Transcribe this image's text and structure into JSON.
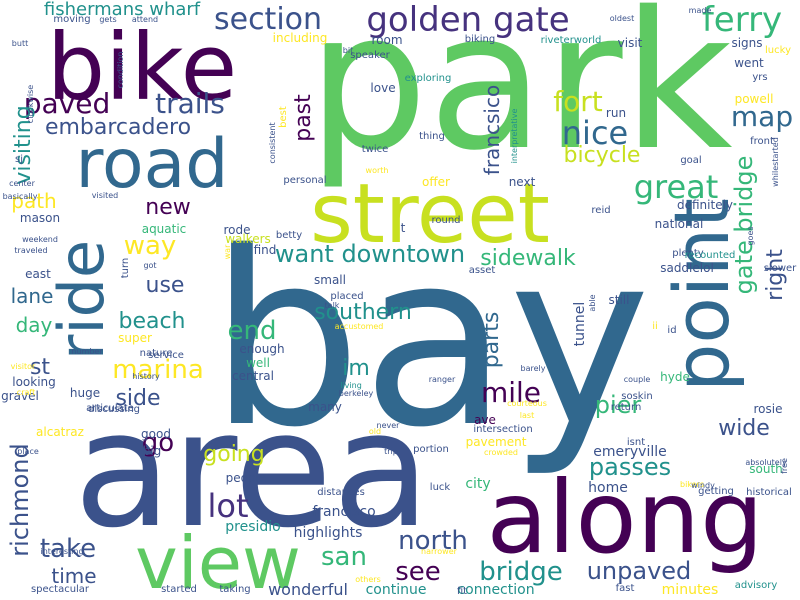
{
  "words": [
    {
      "text": "park",
      "color": "#5ec962",
      "rotate": false
    },
    {
      "text": "bay",
      "color": "#31688e",
      "rotate": false
    },
    {
      "text": "area",
      "color": "#3b528b",
      "rotate": false
    },
    {
      "text": "along",
      "color": "#440154",
      "rotate": false
    },
    {
      "text": "street",
      "color": "#c8e020",
      "rotate": false
    },
    {
      "text": "view",
      "color": "#5ec962",
      "rotate": false
    },
    {
      "text": "bike",
      "color": "#440154",
      "rotate": false
    },
    {
      "text": "road",
      "color": "#31688e",
      "rotate": false
    },
    {
      "text": "point",
      "color": "#31688e",
      "rotate": true
    },
    {
      "text": "ride",
      "color": "#31688e",
      "rotate": true
    },
    {
      "text": "golden gate",
      "color": "#46327e",
      "rotate": false
    },
    {
      "text": "section",
      "color": "#3b528b",
      "rotate": false
    },
    {
      "text": "ferry",
      "color": "#35b779",
      "rotate": false
    },
    {
      "text": "paved",
      "color": "#440154",
      "rotate": false
    },
    {
      "text": "trails",
      "color": "#3b528b",
      "rotate": false
    },
    {
      "text": "nice",
      "color": "#31688e",
      "rotate": false
    },
    {
      "text": "fort",
      "color": "#c8e020",
      "rotate": false
    },
    {
      "text": "map",
      "color": "#31688e",
      "rotate": false
    },
    {
      "text": "great",
      "color": "#35b779",
      "rotate": false
    },
    {
      "text": "bicycle",
      "color": "#c8e020",
      "rotate": false
    },
    {
      "text": "embarcadero",
      "color": "#3b528b",
      "rotate": false
    },
    {
      "text": "visiting",
      "color": "#21918c",
      "rotate": true
    },
    {
      "text": "fishermans wharf",
      "color": "#21918c",
      "rotate": false
    },
    {
      "text": "francsico",
      "color": "#3b528b",
      "rotate": true
    },
    {
      "text": "past",
      "color": "#440154",
      "rotate": true
    },
    {
      "text": "new",
      "color": "#440154",
      "rotate": false
    },
    {
      "text": "way",
      "color": "#fde725",
      "rotate": false
    },
    {
      "text": "want downtown",
      "color": "#21918c",
      "rotate": false
    },
    {
      "text": "sidewalk",
      "color": "#35b779",
      "rotate": false
    },
    {
      "text": "gate bridge",
      "color": "#35b779",
      "rotate": true
    },
    {
      "text": "right",
      "color": "#3b528b",
      "rotate": true
    },
    {
      "text": "path",
      "color": "#fde725",
      "rotate": false
    },
    {
      "text": "lane",
      "color": "#31688e",
      "rotate": false
    },
    {
      "text": "use",
      "color": "#3b528b",
      "rotate": false
    },
    {
      "text": "beach",
      "color": "#21918c",
      "rotate": false
    },
    {
      "text": "day",
      "color": "#35b779",
      "rotate": false
    },
    {
      "text": "end",
      "color": "#35b779",
      "rotate": false
    },
    {
      "text": "southern",
      "color": "#21918c",
      "rotate": false
    },
    {
      "text": "parts",
      "color": "#31688e",
      "rotate": true
    },
    {
      "text": "marina",
      "color": "#fde725",
      "rotate": false
    },
    {
      "text": "st",
      "color": "#3b528b",
      "rotate": false
    },
    {
      "text": "im",
      "color": "#21918c",
      "rotate": false
    },
    {
      "text": "mile",
      "color": "#440154",
      "rotate": false
    },
    {
      "text": "pier",
      "color": "#35b779",
      "rotate": false
    },
    {
      "text": "richmond",
      "color": "#3b528b",
      "rotate": true
    },
    {
      "text": "side",
      "color": "#3b528b",
      "rotate": false
    },
    {
      "text": "go",
      "color": "#440154",
      "rotate": false
    },
    {
      "text": "going",
      "color": "#c8e020",
      "rotate": false
    },
    {
      "text": "lot",
      "color": "#46327e",
      "rotate": false
    },
    {
      "text": "wide",
      "color": "#3b528b",
      "rotate": false
    },
    {
      "text": "passes",
      "color": "#21918c",
      "rotate": false
    },
    {
      "text": "take",
      "color": "#3b528b",
      "rotate": false
    },
    {
      "text": "san",
      "color": "#35b779",
      "rotate": false
    },
    {
      "text": "north",
      "color": "#3b528b",
      "rotate": false
    },
    {
      "text": "see",
      "color": "#440154",
      "rotate": false
    },
    {
      "text": "bridge",
      "color": "#21918c",
      "rotate": false
    },
    {
      "text": "unpaved",
      "color": "#3b528b",
      "rotate": false
    },
    {
      "text": "time",
      "color": "#3b528b",
      "rotate": false
    },
    {
      "text": "presidio",
      "color": "#21918c",
      "rotate": false
    },
    {
      "text": "highlights",
      "color": "#3b528b",
      "rotate": false
    },
    {
      "text": "francisco",
      "color": "#3b528b",
      "rotate": false
    },
    {
      "text": "wonderful",
      "color": "#3b528b",
      "rotate": false
    },
    {
      "text": "continue",
      "color": "#21918c",
      "rotate": false
    },
    {
      "text": "connection",
      "color": "#21918c",
      "rotate": false
    },
    {
      "text": "minutes",
      "color": "#fde725",
      "rotate": false
    },
    {
      "text": "emeryville",
      "color": "#3b528b",
      "rotate": false
    },
    {
      "text": "ave",
      "color": "#440154",
      "rotate": false
    },
    {
      "text": "pavement",
      "color": "#fde725",
      "rotate": false
    },
    {
      "text": "city",
      "color": "#35b779",
      "rotate": false
    },
    {
      "text": "home",
      "color": "#3b528b",
      "rotate": false
    },
    {
      "text": "tunnel",
      "color": "#3b528b",
      "rotate": true
    },
    {
      "text": "still",
      "color": "#3b528b",
      "rotate": false
    },
    {
      "text": "rosie",
      "color": "#3b528b",
      "rotate": false
    },
    {
      "text": "south",
      "color": "#35b779",
      "rotate": false
    },
    {
      "text": "hyde",
      "color": "#35b779",
      "rotate": false
    },
    {
      "text": "id",
      "color": "#3b528b",
      "rotate": false
    },
    {
      "text": "ii",
      "color": "#fde725",
      "rotate": false
    },
    {
      "text": "isnt",
      "color": "#3b528b",
      "rotate": false
    },
    {
      "text": "find",
      "color": "#3b528b",
      "rotate": false
    },
    {
      "text": "walkers",
      "color": "#c8e020",
      "rotate": false
    },
    {
      "text": "small",
      "color": "#3b528b",
      "rotate": false
    },
    {
      "text": "placed",
      "color": "#3b528b",
      "rotate": false
    },
    {
      "text": "talk",
      "color": "#3b528b",
      "rotate": false
    },
    {
      "text": "accustomed",
      "color": "#fde725",
      "rotate": false
    },
    {
      "text": "well",
      "color": "#35b779",
      "rotate": false
    },
    {
      "text": "enough",
      "color": "#3b528b",
      "rotate": false
    },
    {
      "text": "central",
      "color": "#3b528b",
      "rotate": false
    },
    {
      "text": "berkeley",
      "color": "#3b528b",
      "rotate": false
    },
    {
      "text": "many",
      "color": "#3b528b",
      "rotate": false
    },
    {
      "text": "living",
      "color": "#21918c",
      "rotate": false
    },
    {
      "text": "huge",
      "color": "#3b528b",
      "rotate": false
    },
    {
      "text": "super",
      "color": "#fde725",
      "rotate": false
    },
    {
      "text": "gravel",
      "color": "#3b528b",
      "rotate": false
    },
    {
      "text": "looking",
      "color": "#3b528b",
      "rotate": false
    },
    {
      "text": "alcatraz",
      "color": "#fde725",
      "rotate": false
    },
    {
      "text": "good",
      "color": "#3b528b",
      "rotate": false
    },
    {
      "text": "big",
      "color": "#3b528b",
      "rotate": false
    },
    {
      "text": "people",
      "color": "#3b528b",
      "rotate": false
    },
    {
      "text": "place",
      "color": "#3b528b",
      "rotate": false
    },
    {
      "text": "interesting",
      "color": "#3b528b",
      "rotate": false
    },
    {
      "text": "spectacular",
      "color": "#3b528b",
      "rotate": false
    },
    {
      "text": "started",
      "color": "#3b528b",
      "rotate": false
    },
    {
      "text": "taking",
      "color": "#3b528b",
      "rotate": false
    },
    {
      "text": "others",
      "color": "#fde725",
      "rotate": false
    },
    {
      "text": "fit",
      "color": "#3b528b",
      "rotate": false
    },
    {
      "text": "fast",
      "color": "#3b528b",
      "rotate": false
    },
    {
      "text": "advisory",
      "color": "#21918c",
      "rotate": false
    },
    {
      "text": "getting",
      "color": "#3b528b",
      "rotate": false
    },
    {
      "text": "historical",
      "color": "#3b528b",
      "rotate": false
    },
    {
      "text": "absolutely",
      "color": "#3b528b",
      "rotate": false
    },
    {
      "text": "including",
      "color": "#fde725",
      "rotate": false
    },
    {
      "text": "room",
      "color": "#3b528b",
      "rotate": false
    },
    {
      "text": "visit",
      "color": "#3b528b",
      "rotate": false
    },
    {
      "text": "signs",
      "color": "#3b528b",
      "rotate": false
    },
    {
      "text": "powell",
      "color": "#fde725",
      "rotate": false
    },
    {
      "text": "went",
      "color": "#3b528b",
      "rotate": false
    },
    {
      "text": "lucky",
      "color": "#fde725",
      "rotate": false
    },
    {
      "text": "yrs",
      "color": "#3b528b",
      "rotate": false
    },
    {
      "text": "run",
      "color": "#3b528b",
      "rotate": false
    },
    {
      "text": "goal",
      "color": "#3b528b",
      "rotate": false
    },
    {
      "text": "front",
      "color": "#3b528b",
      "rotate": false
    },
    {
      "text": "biking",
      "color": "#3b528b",
      "rotate": false
    },
    {
      "text": "riveterworld",
      "color": "#21918c",
      "rotate": false
    },
    {
      "text": "made",
      "color": "#3b528b",
      "rotate": false
    },
    {
      "text": "oldest",
      "color": "#3b528b",
      "rotate": false
    },
    {
      "text": "speaker",
      "color": "#3b528b",
      "rotate": false
    },
    {
      "text": "exploring",
      "color": "#21918c",
      "rotate": false
    },
    {
      "text": "love",
      "color": "#3b528b",
      "rotate": false
    },
    {
      "text": "thing",
      "color": "#3b528b",
      "rotate": false
    },
    {
      "text": "offer",
      "color": "#fde725",
      "rotate": false
    },
    {
      "text": "next",
      "color": "#3b528b",
      "rotate": false
    },
    {
      "text": "personal",
      "color": "#3b528b",
      "rotate": false
    },
    {
      "text": "worth",
      "color": "#fde725",
      "rotate": false
    },
    {
      "text": "twice",
      "color": "#3b528b",
      "rotate": false
    },
    {
      "text": "aquatic",
      "color": "#35b779",
      "rotate": false
    },
    {
      "text": "rode",
      "color": "#3b528b",
      "rotate": false
    },
    {
      "text": "betty",
      "color": "#3b528b",
      "rotate": false
    },
    {
      "text": "round",
      "color": "#3b528b",
      "rotate": false
    },
    {
      "text": "definitely",
      "color": "#3b528b",
      "rotate": false
    },
    {
      "text": "national",
      "color": "#3b528b",
      "rotate": false
    },
    {
      "text": "reid",
      "color": "#3b528b",
      "rotate": false
    },
    {
      "text": "plenty",
      "color": "#3b528b",
      "rotate": false
    },
    {
      "text": "recounted",
      "color": "#21918c",
      "rotate": false
    },
    {
      "text": "saddlelol",
      "color": "#3b528b",
      "rotate": false
    },
    {
      "text": "slower",
      "color": "#3b528b",
      "rotate": false
    },
    {
      "text": "asset",
      "color": "#3b528b",
      "rotate": false
    },
    {
      "text": "nature",
      "color": "#3b528b",
      "rotate": false
    },
    {
      "text": "got",
      "color": "#3b528b",
      "rotate": false
    },
    {
      "text": "east",
      "color": "#3b528b",
      "rotate": false
    },
    {
      "text": "mason",
      "color": "#3b528b",
      "rotate": false
    },
    {
      "text": "center",
      "color": "#3b528b",
      "rotate": false
    },
    {
      "text": "basically",
      "color": "#3b528b",
      "rotate": false
    },
    {
      "text": "weekend",
      "color": "#3b528b",
      "rotate": false
    },
    {
      "text": "traveled",
      "color": "#3b528b",
      "rotate": false
    },
    {
      "text": "visitor",
      "color": "#fde725",
      "rotate": false
    },
    {
      "text": "number",
      "color": "#3b528b",
      "rotate": false
    },
    {
      "text": "service",
      "color": "#3b528b",
      "rotate": false
    },
    {
      "text": "articulate",
      "color": "#3b528b",
      "rotate": false
    },
    {
      "text": "history",
      "color": "#3b528b",
      "rotate": false
    },
    {
      "text": "craft",
      "color": "#fde725",
      "rotate": false
    },
    {
      "text": "discussing",
      "color": "#3b528b",
      "rotate": false
    },
    {
      "text": "old",
      "color": "#fde725",
      "rotate": false
    },
    {
      "text": "never",
      "color": "#3b528b",
      "rotate": false
    },
    {
      "text": "trip",
      "color": "#3b528b",
      "rotate": false
    },
    {
      "text": "portion",
      "color": "#3b528b",
      "rotate": false
    },
    {
      "text": "intersection",
      "color": "#3b528b",
      "rotate": false
    },
    {
      "text": "crowded",
      "color": "#fde725",
      "rotate": false
    },
    {
      "text": "courteous",
      "color": "#fde725",
      "rotate": false
    },
    {
      "text": "last",
      "color": "#fde725",
      "rotate": false
    },
    {
      "text": "soskin",
      "color": "#3b528b",
      "rotate": false
    },
    {
      "text": "return",
      "color": "#3b528b",
      "rotate": false
    },
    {
      "text": "couple",
      "color": "#3b528b",
      "rotate": false
    },
    {
      "text": "ranger",
      "color": "#3b528b",
      "rotate": false
    },
    {
      "text": "barely",
      "color": "#3b528b",
      "rotate": false
    },
    {
      "text": "distances",
      "color": "#3b528b",
      "rotate": false
    },
    {
      "text": "luck",
      "color": "#3b528b",
      "rotate": false
    },
    {
      "text": "bikers",
      "color": "#fde725",
      "rotate": false
    },
    {
      "text": "windy",
      "color": "#3b528b",
      "rotate": false
    },
    {
      "text": "narrower",
      "color": "#fde725",
      "rotate": false
    },
    {
      "text": "moving",
      "color": "#3b528b",
      "rotate": false
    },
    {
      "text": "gets",
      "color": "#3b528b",
      "rotate": false
    },
    {
      "text": "attend",
      "color": "#3b528b",
      "rotate": false
    },
    {
      "text": "butt",
      "color": "#3b528b",
      "rotate": false
    },
    {
      "text": "sj",
      "color": "#3b528b",
      "rotate": false
    },
    {
      "text": "visited",
      "color": "#3b528b",
      "rotate": false
    },
    {
      "text": "best",
      "color": "#fde725",
      "rotate": true
    },
    {
      "text": "clockwise",
      "color": "#3b528b",
      "rotate": true
    },
    {
      "text": "condition",
      "color": "#3b528b",
      "rotate": true
    },
    {
      "text": "bit",
      "color": "#3b528b",
      "rotate": false
    },
    {
      "text": "consistent",
      "color": "#3b528b",
      "rotate": true
    },
    {
      "text": "interpretative",
      "color": "#21918c",
      "rotate": true
    },
    {
      "text": "whilestarted",
      "color": "#3b528b",
      "rotate": true
    },
    {
      "text": "war",
      "color": "#fde725",
      "rotate": true
    },
    {
      "text": "t",
      "color": "#3b528b",
      "rotate": false
    },
    {
      "text": "turn",
      "color": "#3b528b",
      "rotate": true
    },
    {
      "text": "able",
      "color": "#3b528b",
      "rotate": true
    },
    {
      "text": "goes",
      "color": "#3b528b",
      "rotate": true
    },
    {
      "text": "free",
      "color": "#3b528b",
      "rotate": true
    },
    {
      "text": "s",
      "color": "#3b528b",
      "rotate": false
    }
  ]
}
